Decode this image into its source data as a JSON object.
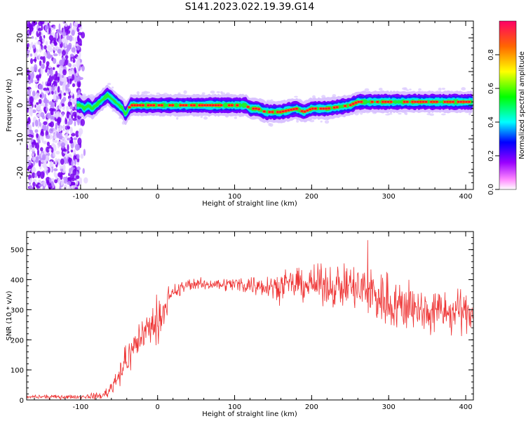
{
  "title": "S141.2023.022.19.39.G14",
  "chart_data": [
    {
      "type": "heatmap",
      "xlabel": "Height of straight line (km)",
      "ylabel": "Frequency (Hz)",
      "xlim": [
        -170,
        410
      ],
      "ylim": [
        -25,
        25
      ],
      "xticks": [
        -100,
        0,
        100,
        200,
        300,
        400
      ],
      "yticks": [
        -20,
        -10,
        0,
        10,
        20
      ],
      "colorbar": {
        "label": "Normalized spectral amplitude",
        "range": [
          0,
          1
        ],
        "ticks": [
          "0.0",
          "0.2",
          "0.4",
          "0.6",
          "0.8"
        ],
        "colors": [
          "#ff88ff",
          "#9900ff",
          "#0000ff",
          "#00ffff",
          "#00ff00",
          "#ffff00",
          "#ff6600",
          "#ff0066"
        ]
      },
      "ridge": {
        "x": [
          -100,
          -95,
          -90,
          -85,
          -80,
          -75,
          -70,
          -65,
          -60,
          -55,
          -50,
          -45,
          -42,
          -40,
          -35,
          -30,
          -20,
          0,
          50,
          100,
          115,
          120,
          130,
          140,
          160,
          180,
          190,
          200,
          220,
          250,
          260,
          300,
          350,
          410
        ],
        "y": [
          0,
          -1,
          0,
          -1,
          0,
          1,
          2,
          3,
          2,
          1,
          0,
          -1,
          -3,
          -2,
          0,
          0,
          0,
          0,
          0,
          0,
          0,
          -1,
          -1,
          -2,
          -2,
          -1,
          -2,
          -1,
          -1,
          0,
          1,
          1,
          1,
          1
        ]
      }
    },
    {
      "type": "line",
      "xlabel": "Height of straight line (km)",
      "ylabel": "SNR (10 * v/v)",
      "xlim": [
        -170,
        410
      ],
      "ylim": [
        0,
        560
      ],
      "xticks": [
        -100,
        0,
        100,
        200,
        300,
        400
      ],
      "yticks": [
        0,
        100,
        200,
        300,
        400,
        500
      ],
      "color": "#ee3333",
      "envelope": {
        "x": [
          -170,
          -100,
          -70,
          -60,
          -50,
          -40,
          -30,
          -20,
          -10,
          0,
          10,
          20,
          30,
          40,
          60,
          80,
          100,
          150,
          200,
          250,
          280,
          300,
          320,
          350,
          380,
          410
        ],
        "mean": [
          10,
          10,
          15,
          40,
          90,
          130,
          180,
          220,
          240,
          260,
          310,
          350,
          370,
          385,
          385,
          385,
          385,
          380,
          385,
          375,
          355,
          330,
          310,
          295,
          290,
          295
        ],
        "spread": [
          5,
          5,
          10,
          20,
          35,
          40,
          45,
          50,
          50,
          45,
          30,
          25,
          20,
          15,
          15,
          15,
          20,
          30,
          45,
          60,
          80,
          75,
          65,
          60,
          55,
          50
        ]
      }
    }
  ]
}
